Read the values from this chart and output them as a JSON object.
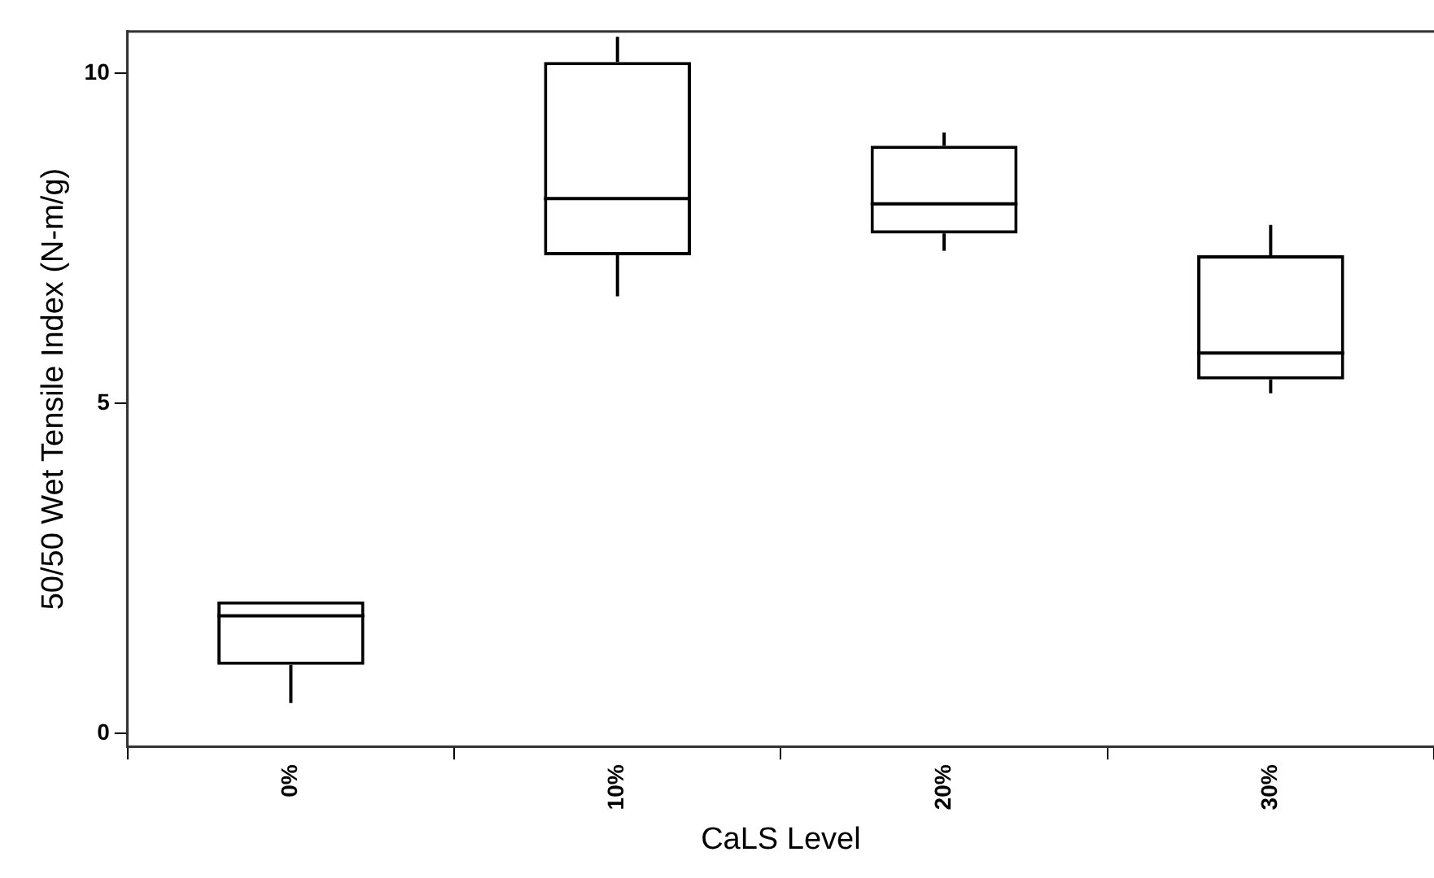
{
  "chart_data": {
    "type": "box",
    "xlabel": "CaLS Level",
    "ylabel": "50/50 Wet Tensile Index (N-m/g)",
    "categories": [
      "0%",
      "10%",
      "20%",
      "30%"
    ],
    "boxes": [
      {
        "low": 0.46,
        "q1": 1.04,
        "median": 1.78,
        "q3": 2.0,
        "high": 2.0
      },
      {
        "low": 6.62,
        "q1": 7.24,
        "median": 8.1,
        "q3": 10.17,
        "high": 10.55
      },
      {
        "low": 7.31,
        "q1": 7.57,
        "median": 8.02,
        "q3": 8.9,
        "high": 9.1
      },
      {
        "low": 5.15,
        "q1": 5.36,
        "median": 5.76,
        "q3": 7.24,
        "high": 7.7
      }
    ],
    "color": "#000000",
    "ylim": [
      -0.2,
      10.63
    ],
    "yticks": [
      0,
      5,
      10
    ],
    "grid": false,
    "legend": false
  }
}
